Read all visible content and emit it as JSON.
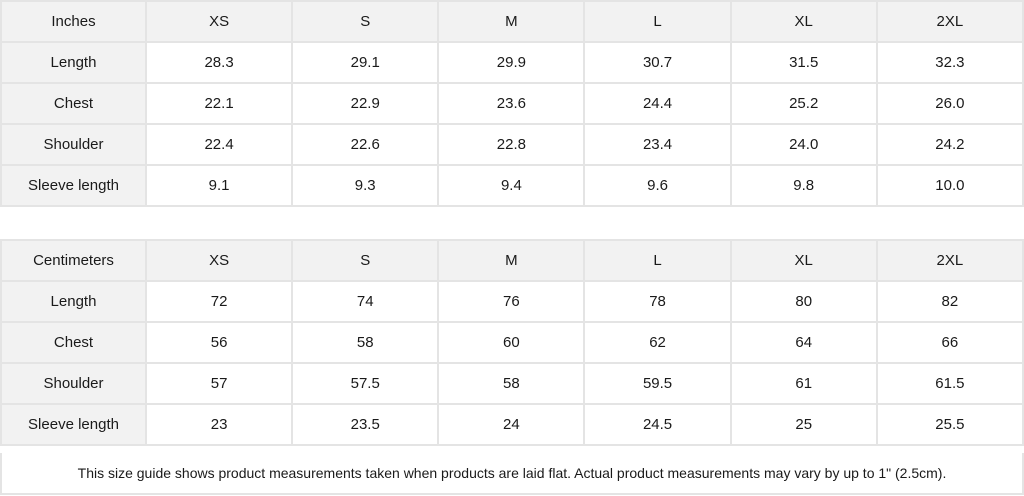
{
  "tables": [
    {
      "unit": "Inches",
      "sizes": [
        "XS",
        "S",
        "M",
        "L",
        "XL",
        "2XL"
      ],
      "rows": [
        {
          "label": "Length",
          "values": [
            "28.3",
            "29.1",
            "29.9",
            "30.7",
            "31.5",
            "32.3"
          ]
        },
        {
          "label": "Chest",
          "values": [
            "22.1",
            "22.9",
            "23.6",
            "24.4",
            "25.2",
            "26.0"
          ]
        },
        {
          "label": "Shoulder",
          "values": [
            "22.4",
            "22.6",
            "22.8",
            "23.4",
            "24.0",
            "24.2"
          ]
        },
        {
          "label": "Sleeve length",
          "values": [
            "9.1",
            "9.3",
            "9.4",
            "9.6",
            "9.8",
            "10.0"
          ]
        }
      ]
    },
    {
      "unit": "Centimeters",
      "sizes": [
        "XS",
        "S",
        "M",
        "L",
        "XL",
        "2XL"
      ],
      "rows": [
        {
          "label": "Length",
          "values": [
            "72",
            "74",
            "76",
            "78",
            "80",
            "82"
          ]
        },
        {
          "label": "Chest",
          "values": [
            "56",
            "58",
            "60",
            "62",
            "64",
            "66"
          ]
        },
        {
          "label": "Shoulder",
          "values": [
            "57",
            "57.5",
            "58",
            "59.5",
            "61",
            "61.5"
          ]
        },
        {
          "label": "Sleeve length",
          "values": [
            "23",
            "23.5",
            "24",
            "24.5",
            "25",
            "25.5"
          ]
        }
      ]
    }
  ],
  "footer": "This size guide shows product measurements taken when products are laid flat.  Actual product measurements may vary by up to 1\" (2.5cm)."
}
